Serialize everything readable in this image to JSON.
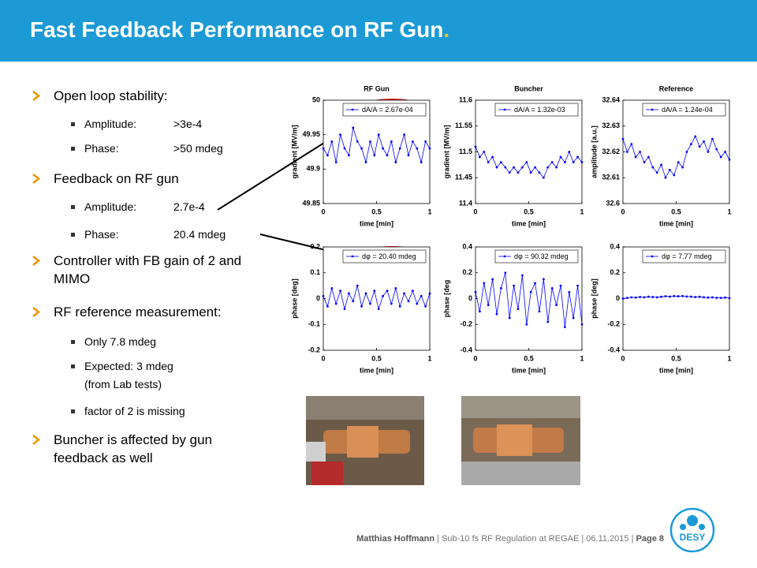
{
  "header": {
    "title": "Fast Feedback Performance on RF Gun",
    "title_end": "."
  },
  "bullets": [
    {
      "text": "Open loop stability:",
      "items": [
        {
          "label": "Amplitude:",
          "value": ">3e-4"
        },
        {
          "label": "Phase:",
          "value": ">50 mdeg"
        }
      ]
    },
    {
      "text": "Feedback on RF gun",
      "items": [
        {
          "label": "Amplitude:",
          "value": "2.7e-4"
        },
        {
          "label": "Phase:",
          "value": "20.4 mdeg"
        }
      ]
    },
    {
      "text": "Controller with FB gain of 2 and MIMO"
    },
    {
      "text": "RF reference measurement:",
      "items": [
        {
          "text": "Only 7.8 mdeg"
        },
        {
          "text": "Expected: 3 mdeg (from Lab tests)"
        },
        {
          "text": "factor of 2 is missing"
        }
      ]
    },
    {
      "text": "Buncher is affected by gun feedback as well"
    }
  ],
  "chart_data": [
    {
      "type": "line",
      "title": "RF Gun",
      "xlabel": "time [min]",
      "ylabel": "gradient [MV/m]",
      "xlim": [
        0,
        1
      ],
      "xticks": [
        0,
        0.5,
        1
      ],
      "ylim": [
        49.85,
        50
      ],
      "yticks": [
        49.85,
        49.9,
        49.95,
        50
      ],
      "series": [
        {
          "name": "dA/A = 2.67e-04",
          "color": "#0000ff",
          "x": [
            0,
            0.04,
            0.08,
            0.12,
            0.16,
            0.2,
            0.24,
            0.28,
            0.32,
            0.36,
            0.4,
            0.44,
            0.48,
            0.52,
            0.56,
            0.6,
            0.64,
            0.68,
            0.72,
            0.76,
            0.8,
            0.84,
            0.88,
            0.92,
            0.96,
            1
          ],
          "values": [
            49.93,
            49.92,
            49.94,
            49.91,
            49.95,
            49.93,
            49.92,
            49.96,
            49.94,
            49.93,
            49.91,
            49.94,
            49.92,
            49.95,
            49.93,
            49.92,
            49.94,
            49.91,
            49.93,
            49.95,
            49.92,
            49.94,
            49.93,
            49.91,
            49.94,
            49.93
          ]
        }
      ]
    },
    {
      "type": "line",
      "title": "Buncher",
      "xlabel": "time [min]",
      "ylabel": "gradient [MV/m]",
      "xlim": [
        0,
        1
      ],
      "xticks": [
        0,
        0.5,
        1
      ],
      "ylim": [
        11.4,
        11.6
      ],
      "yticks": [
        11.4,
        11.45,
        11.5,
        11.55,
        11.6
      ],
      "series": [
        {
          "name": "dA/A = 1.32e-03",
          "color": "#0000ff",
          "x": [
            0,
            0.04,
            0.08,
            0.12,
            0.16,
            0.2,
            0.24,
            0.28,
            0.32,
            0.36,
            0.4,
            0.44,
            0.48,
            0.52,
            0.56,
            0.6,
            0.64,
            0.68,
            0.72,
            0.76,
            0.8,
            0.84,
            0.88,
            0.92,
            0.96,
            1
          ],
          "values": [
            11.51,
            11.49,
            11.5,
            11.48,
            11.49,
            11.47,
            11.48,
            11.47,
            11.46,
            11.47,
            11.46,
            11.47,
            11.48,
            11.46,
            11.47,
            11.46,
            11.45,
            11.47,
            11.48,
            11.47,
            11.49,
            11.48,
            11.5,
            11.48,
            11.49,
            11.48
          ]
        }
      ]
    },
    {
      "type": "line",
      "title": "Reference",
      "xlabel": "time [min]",
      "ylabel": "amplitude [a.u.]",
      "xlim": [
        0,
        1
      ],
      "xticks": [
        0,
        0.5,
        1
      ],
      "ylim": [
        32.6,
        32.64
      ],
      "yticks": [
        32.6,
        32.61,
        32.62,
        32.63,
        32.64
      ],
      "series": [
        {
          "name": "dA/A = 1.24e-04",
          "color": "#0000ff",
          "x": [
            0,
            0.04,
            0.08,
            0.12,
            0.16,
            0.2,
            0.24,
            0.28,
            0.32,
            0.36,
            0.4,
            0.44,
            0.48,
            0.52,
            0.56,
            0.6,
            0.64,
            0.68,
            0.72,
            0.76,
            0.8,
            0.84,
            0.88,
            0.92,
            0.96,
            1
          ],
          "values": [
            32.625,
            32.62,
            32.623,
            32.618,
            32.62,
            32.616,
            32.618,
            32.614,
            32.612,
            32.615,
            32.61,
            32.613,
            32.611,
            32.616,
            32.614,
            32.62,
            32.623,
            32.626,
            32.622,
            32.624,
            32.62,
            32.625,
            32.621,
            32.618,
            32.62,
            32.617
          ]
        }
      ]
    },
    {
      "type": "line",
      "xlabel": "time [min]",
      "ylabel": "phase [deg]",
      "xlim": [
        0,
        1
      ],
      "xticks": [
        0,
        0.5,
        1
      ],
      "ylim": [
        -0.2,
        0.2
      ],
      "yticks": [
        -0.2,
        -0.1,
        0,
        0.1,
        0.2
      ],
      "series": [
        {
          "name": "dφ = 20.40 mdeg",
          "color": "#0000ff",
          "x": [
            0,
            0.04,
            0.08,
            0.12,
            0.16,
            0.2,
            0.24,
            0.28,
            0.32,
            0.36,
            0.4,
            0.44,
            0.48,
            0.52,
            0.56,
            0.6,
            0.64,
            0.68,
            0.72,
            0.76,
            0.8,
            0.84,
            0.88,
            0.92,
            0.96,
            1
          ],
          "values": [
            0.01,
            -0.03,
            0.04,
            -0.02,
            0.03,
            -0.04,
            0.02,
            -0.01,
            0.05,
            -0.03,
            0.02,
            -0.02,
            0.03,
            -0.04,
            0.01,
            0.03,
            -0.02,
            0.04,
            -0.03,
            0.02,
            -0.01,
            0.03,
            -0.02,
            0.01,
            -0.03,
            0.02
          ]
        }
      ]
    },
    {
      "type": "line",
      "xlabel": "time [min]",
      "ylabel": "phase [deg",
      "xlim": [
        0,
        1
      ],
      "xticks": [
        0,
        0.5,
        1
      ],
      "ylim": [
        -0.4,
        0.4
      ],
      "yticks": [
        -0.4,
        -0.2,
        0,
        0.2,
        0.4
      ],
      "series": [
        {
          "name": "dφ = 90.32 mdeg",
          "color": "#0000ff",
          "x": [
            0,
            0.04,
            0.08,
            0.12,
            0.16,
            0.2,
            0.24,
            0.28,
            0.32,
            0.36,
            0.4,
            0.44,
            0.48,
            0.52,
            0.56,
            0.6,
            0.64,
            0.68,
            0.72,
            0.76,
            0.8,
            0.84,
            0.88,
            0.92,
            0.96,
            1
          ],
          "values": [
            0.05,
            -0.1,
            0.12,
            -0.05,
            0.15,
            -0.12,
            0.08,
            0.2,
            -0.15,
            0.1,
            -0.08,
            0.18,
            -0.2,
            0.05,
            0.12,
            -0.1,
            0.15,
            -0.18,
            0.08,
            -0.05,
            0.1,
            -0.22,
            0.05,
            -0.15,
            0.1,
            -0.2
          ]
        }
      ]
    },
    {
      "type": "line",
      "xlabel": "time [min]",
      "ylabel": "phase [deg]",
      "xlim": [
        0,
        1
      ],
      "xticks": [
        0,
        0.5,
        1
      ],
      "ylim": [
        -0.4,
        0.4
      ],
      "yticks": [
        -0.4,
        -0.2,
        0,
        0.2,
        0.4
      ],
      "series": [
        {
          "name": "dφ = 7.77 mdeg",
          "color": "#0000ff",
          "x": [
            0,
            0.04,
            0.08,
            0.12,
            0.16,
            0.2,
            0.24,
            0.28,
            0.32,
            0.36,
            0.4,
            0.44,
            0.48,
            0.52,
            0.56,
            0.6,
            0.64,
            0.68,
            0.72,
            0.76,
            0.8,
            0.84,
            0.88,
            0.92,
            0.96,
            1
          ],
          "values": [
            0,
            0.005,
            0.01,
            0.008,
            0.012,
            0.01,
            0.015,
            0.012,
            0.01,
            0.014,
            0.018,
            0.015,
            0.02,
            0.018,
            0.02,
            0.016,
            0.015,
            0.012,
            0.014,
            0.01,
            0.008,
            0.01,
            0.006,
            0.005,
            0.008,
            0.004
          ]
        }
      ]
    }
  ],
  "footer": {
    "author": "Matthias Hoffmann",
    "separator": "|",
    "talk": "Sub-10 fs RF Regulation at REGAE",
    "date": "06.11.2015",
    "page": "Page 8"
  },
  "logo": "DESY"
}
